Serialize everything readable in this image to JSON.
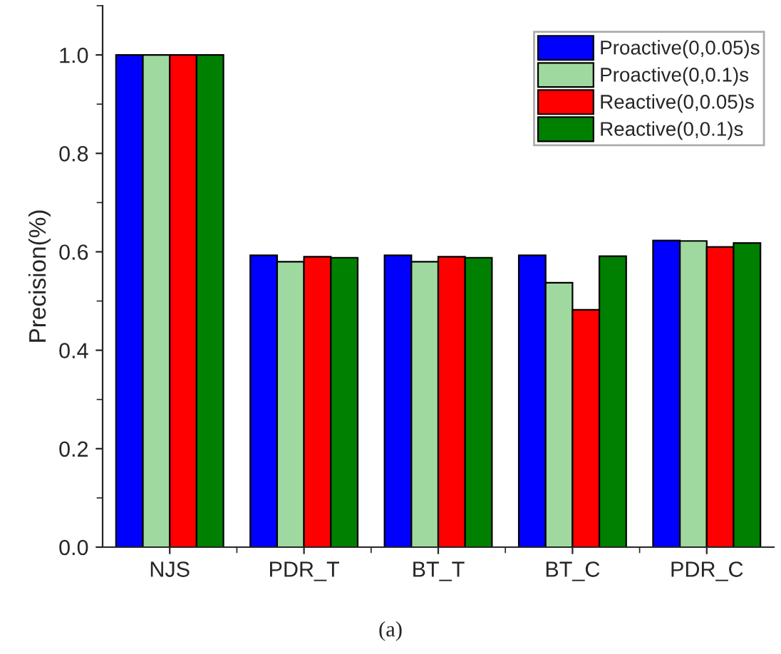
{
  "chart_data": {
    "type": "bar",
    "ylabel": "Precision(%)",
    "categories": [
      "NJS",
      "PDR_T",
      "BT_T",
      "BT_C",
      "PDR_C"
    ],
    "series": [
      {
        "name": "Proactive(0,0.05)s",
        "color": "#0000ff",
        "values": [
          1.0,
          0.593,
          0.593,
          0.593,
          0.623
        ]
      },
      {
        "name": "Proactive(0,0.1)s",
        "color": "#9fd99f",
        "values": [
          1.0,
          0.58,
          0.58,
          0.537,
          0.622
        ]
      },
      {
        "name": "Reactive(0,0.05)s",
        "color": "#ff0000",
        "values": [
          1.0,
          0.59,
          0.59,
          0.482,
          0.61
        ]
      },
      {
        "name": "Reactive(0,0.1)s",
        "color": "#008000",
        "values": [
          1.0,
          0.588,
          0.588,
          0.591,
          0.618
        ]
      }
    ],
    "ylim": [
      0,
      1.1
    ],
    "yticks": [
      {
        "value": 0,
        "label": "0.0"
      },
      0.2,
      0.4,
      0.6,
      0.8,
      {
        "value": 1,
        "label": "1.0"
      }
    ],
    "legend": "top right",
    "grid": false,
    "annotations": [
      "(a)"
    ]
  }
}
